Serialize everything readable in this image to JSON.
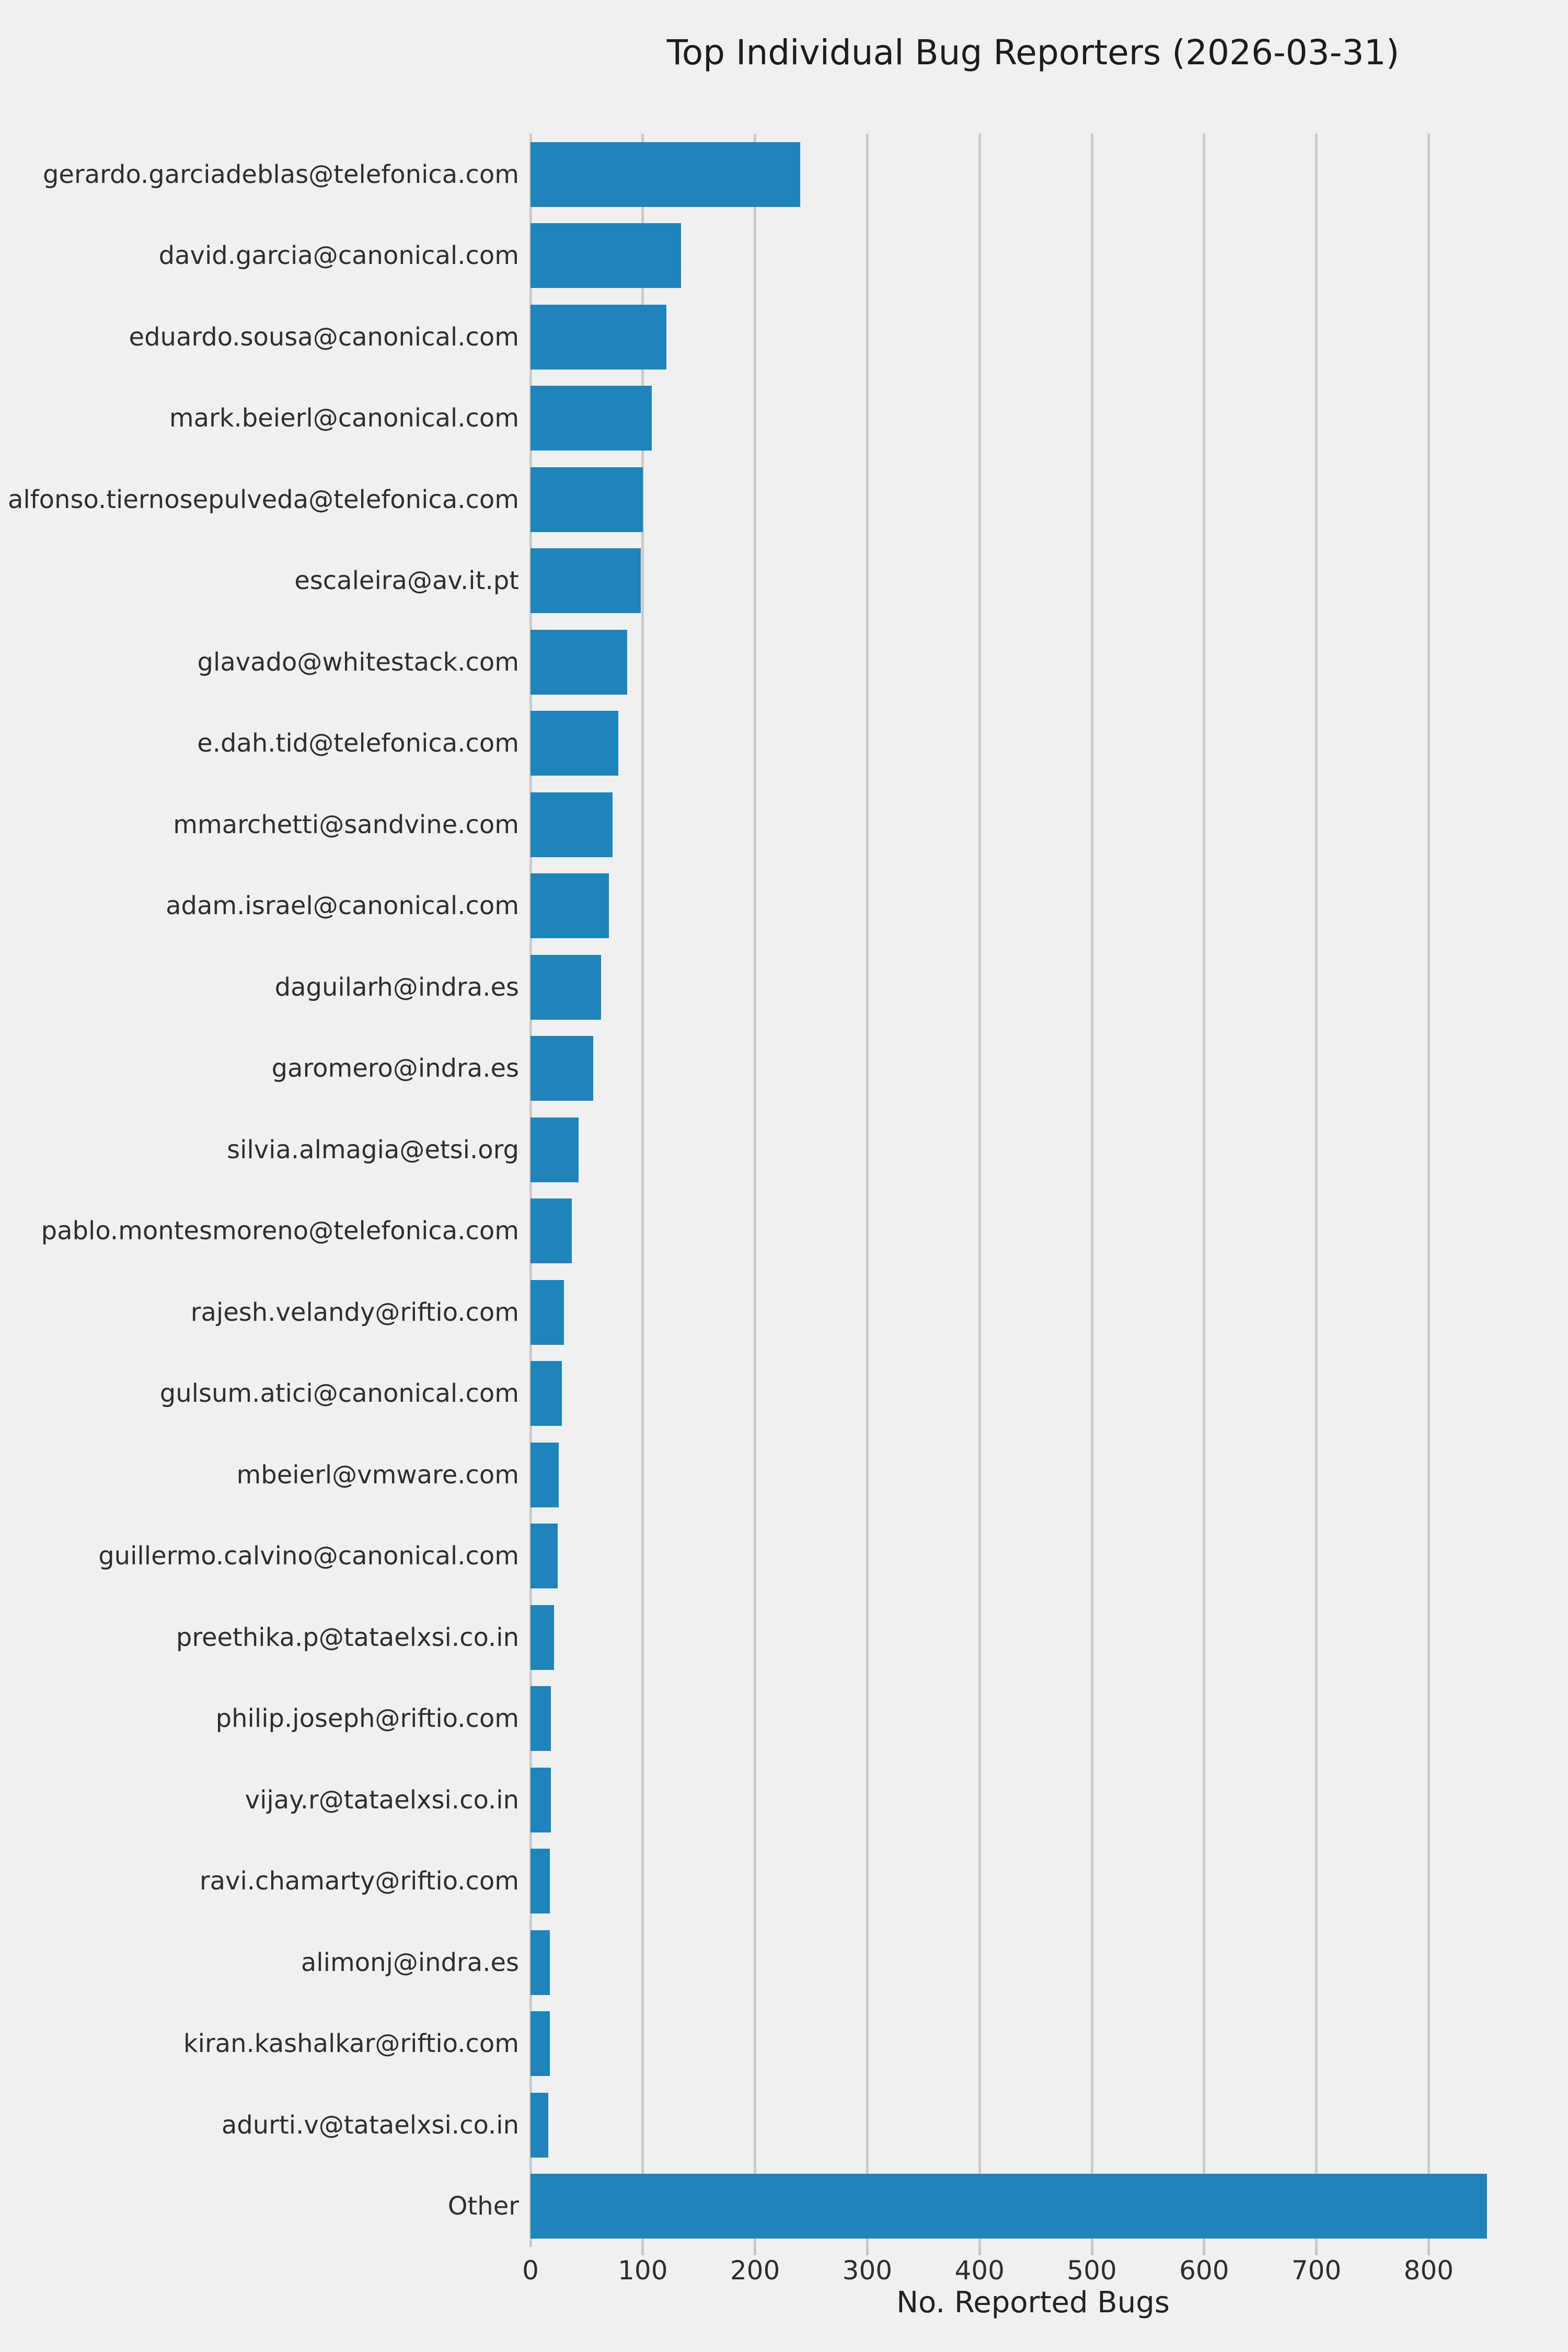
{
  "chart_data": {
    "type": "bar",
    "orientation": "horizontal",
    "title": "Top Individual Bug Reporters (2026-03-31)",
    "xlabel": "No. Reported Bugs",
    "ylabel": "",
    "categories": [
      "gerardo.garciadeblas@telefonica.com",
      "david.garcia@canonical.com",
      "eduardo.sousa@canonical.com",
      "mark.beierl@canonical.com",
      "alfonso.tiernosepulveda@telefonica.com",
      "escaleira@av.it.pt",
      "glavado@whitestack.com",
      "e.dah.tid@telefonica.com",
      "mmarchetti@sandvine.com",
      "adam.israel@canonical.com",
      "daguilarh@indra.es",
      "garomero@indra.es",
      "silvia.almagia@etsi.org",
      "pablo.montesmoreno@telefonica.com",
      "rajesh.velandy@riftio.com",
      "gulsum.atici@canonical.com",
      "mbeierl@vmware.com",
      "guillermo.calvino@canonical.com",
      "preethika.p@tataelxsi.co.in",
      "philip.joseph@riftio.com",
      "vijay.r@tataelxsi.co.in",
      "ravi.chamarty@riftio.com",
      "alimonj@indra.es",
      "kiran.kashalkar@riftio.com",
      "adurti.v@tataelxsi.co.in",
      "Other"
    ],
    "values": [
      240,
      134,
      121,
      108,
      100,
      98,
      86,
      78,
      73,
      70,
      63,
      56,
      43,
      37,
      30,
      28,
      25,
      24,
      21,
      18,
      18,
      17,
      17,
      17,
      16,
      852
    ],
    "x_ticks": [
      0,
      100,
      200,
      300,
      400,
      500,
      600,
      700,
      800
    ],
    "xlim": [
      0,
      895
    ],
    "grid": true,
    "legend": false,
    "colors": {
      "bar": "#1e84ba",
      "background": "#f0f0f0",
      "gridline": "#cbcbcb",
      "tick_mark": "#c6c6c6",
      "text": "#2e2e2e",
      "title_text": "#1c1c1c"
    }
  }
}
